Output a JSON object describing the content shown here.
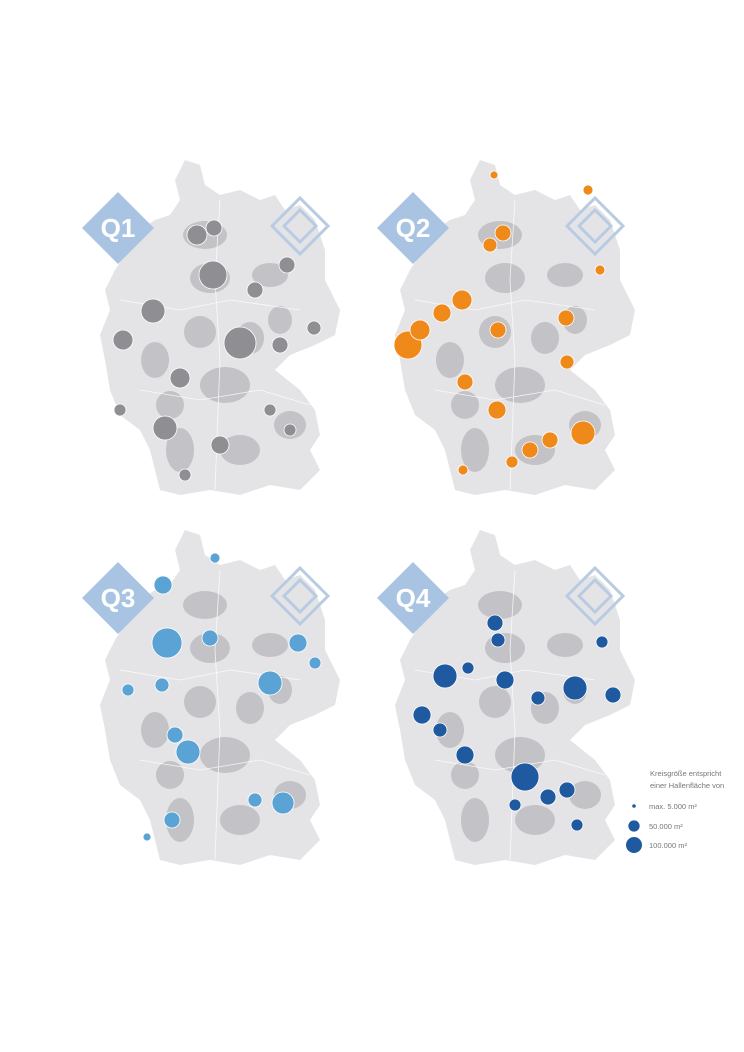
{
  "maps": [
    {
      "label": "Q1",
      "color": "#8e8e93",
      "values": [
        306000,
        156000,
        100000,
        225000,
        156000,
        400000,
        225000,
        156000,
        127000,
        100000,
        100000,
        100000,
        77000,
        56000,
        56000,
        56000,
        56000
      ]
    },
    {
      "label": "Q2",
      "color": "#ef8a1a",
      "values": [
        306000,
        156000,
        156000,
        127000,
        225000,
        100000,
        127000,
        100000,
        77000,
        100000,
        77000,
        100000,
        39000,
        39000,
        100000,
        56000,
        39000,
        25000,
        100000
      ]
    },
    {
      "label": "Q3",
      "color": "#5aa3d4",
      "values": [
        352000,
        225000,
        225000,
        189000,
        127000,
        127000,
        100000,
        100000,
        77000,
        100000,
        39000,
        77000,
        56000,
        56000,
        25000
      ]
    },
    {
      "label": "Q4",
      "color": "#1f5aa0",
      "values": [
        306000,
        225000,
        225000,
        127000,
        127000,
        100000,
        100000,
        127000,
        100000,
        100000,
        77000,
        77000,
        77000,
        56000,
        56000,
        56000,
        56000
      ]
    }
  ],
  "legend": {
    "title_lines": [
      "Kreisgröße entspricht",
      "einer Hallenfläche von"
    ],
    "color": "#1f5aa0",
    "entries": [
      {
        "value": 5000,
        "label": "max. 5.000 m²"
      },
      {
        "value": 50000,
        "label": "50.000 m²"
      },
      {
        "value": 100000,
        "label": "100.000 m²"
      }
    ]
  }
}
